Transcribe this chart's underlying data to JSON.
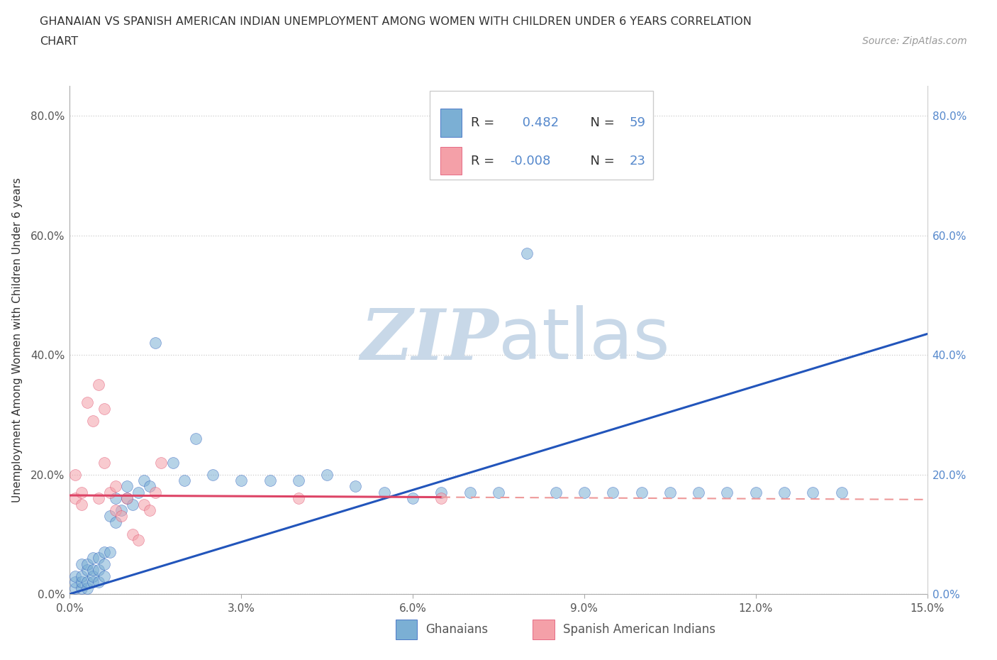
{
  "title_line1": "GHANAIAN VS SPANISH AMERICAN INDIAN UNEMPLOYMENT AMONG WOMEN WITH CHILDREN UNDER 6 YEARS CORRELATION",
  "title_line2": "CHART",
  "source": "Source: ZipAtlas.com",
  "ylabel": "Unemployment Among Women with Children Under 6 years",
  "xlim": [
    0.0,
    0.15
  ],
  "ylim": [
    0.0,
    0.85
  ],
  "xticks": [
    0.0,
    0.03,
    0.06,
    0.09,
    0.12,
    0.15
  ],
  "xticklabels": [
    "0.0%",
    "3.0%",
    "6.0%",
    "9.0%",
    "12.0%",
    "15.0%"
  ],
  "yticks": [
    0.0,
    0.2,
    0.4,
    0.6,
    0.8
  ],
  "yticklabels": [
    "0.0%",
    "20.0%",
    "40.0%",
    "60.0%",
    "80.0%"
  ],
  "legend_label1": "Ghanaians",
  "legend_label2": "Spanish American Indians",
  "R1": 0.482,
  "N1": 59,
  "R2": -0.008,
  "N2": 23,
  "color_blue": "#7BAFD4",
  "color_pink": "#F4A0A8",
  "line_blue": "#2255BB",
  "line_pink": "#DD4466",
  "line_pink_dash": "#EE9999",
  "watermark_color": "#C8D8E8",
  "background_color": "#FFFFFF",
  "blue_line_x0": 0.0,
  "blue_line_y0": 0.0,
  "blue_line_x1": 0.15,
  "blue_line_y1": 0.435,
  "pink_line_solid_x0": 0.0,
  "pink_line_solid_y0": 0.165,
  "pink_line_solid_x1": 0.065,
  "pink_line_solid_y1": 0.162,
  "pink_line_dash_x0": 0.065,
  "pink_line_dash_y0": 0.162,
  "pink_line_dash_x1": 0.15,
  "pink_line_dash_y1": 0.158,
  "ghanaian_x": [
    0.001,
    0.001,
    0.001,
    0.002,
    0.002,
    0.002,
    0.002,
    0.003,
    0.003,
    0.003,
    0.003,
    0.004,
    0.004,
    0.004,
    0.004,
    0.005,
    0.005,
    0.005,
    0.006,
    0.006,
    0.006,
    0.007,
    0.007,
    0.008,
    0.008,
    0.009,
    0.01,
    0.01,
    0.011,
    0.012,
    0.013,
    0.014,
    0.015,
    0.018,
    0.02,
    0.022,
    0.025,
    0.03,
    0.035,
    0.04,
    0.045,
    0.05,
    0.055,
    0.06,
    0.065,
    0.07,
    0.075,
    0.08,
    0.085,
    0.09,
    0.095,
    0.1,
    0.105,
    0.11,
    0.115,
    0.12,
    0.125,
    0.13,
    0.135
  ],
  "ghanaian_y": [
    0.01,
    0.02,
    0.03,
    0.01,
    0.02,
    0.03,
    0.05,
    0.01,
    0.02,
    0.04,
    0.05,
    0.02,
    0.03,
    0.04,
    0.06,
    0.02,
    0.04,
    0.06,
    0.03,
    0.05,
    0.07,
    0.07,
    0.13,
    0.12,
    0.16,
    0.14,
    0.16,
    0.18,
    0.15,
    0.17,
    0.19,
    0.18,
    0.42,
    0.22,
    0.19,
    0.26,
    0.2,
    0.19,
    0.19,
    0.19,
    0.2,
    0.18,
    0.17,
    0.16,
    0.17,
    0.17,
    0.17,
    0.57,
    0.17,
    0.17,
    0.17,
    0.17,
    0.17,
    0.17,
    0.17,
    0.17,
    0.17,
    0.17,
    0.17
  ],
  "spanish_x": [
    0.001,
    0.001,
    0.002,
    0.002,
    0.003,
    0.004,
    0.005,
    0.005,
    0.006,
    0.006,
    0.007,
    0.008,
    0.008,
    0.009,
    0.01,
    0.011,
    0.012,
    0.013,
    0.014,
    0.015,
    0.016,
    0.04,
    0.065
  ],
  "spanish_y": [
    0.16,
    0.2,
    0.15,
    0.17,
    0.32,
    0.29,
    0.35,
    0.16,
    0.22,
    0.31,
    0.17,
    0.18,
    0.14,
    0.13,
    0.16,
    0.1,
    0.09,
    0.15,
    0.14,
    0.17,
    0.22,
    0.16,
    0.16
  ]
}
